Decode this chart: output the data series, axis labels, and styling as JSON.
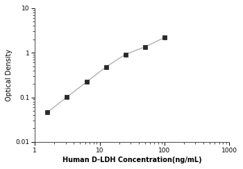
{
  "x_data": [
    1.563,
    3.125,
    6.25,
    12.5,
    25,
    50,
    100
  ],
  "y_data": [
    0.046,
    0.102,
    0.22,
    0.48,
    0.92,
    1.35,
    2.2
  ],
  "xlim": [
    1,
    1000
  ],
  "ylim": [
    0.01,
    10
  ],
  "xlabel": "Human D-LDH Concentration(ng/mL)",
  "ylabel": "Optical Density",
  "line_color": "#b0b0b0",
  "marker_color": "#2a2a2a",
  "marker": "s",
  "marker_size": 4,
  "line_width": 1.0,
  "xlabel_fontsize": 7,
  "ylabel_fontsize": 7,
  "tick_fontsize": 6.5,
  "background_color": "#ffffff",
  "xtick_labels": [
    "1",
    "10",
    "100",
    "1000"
  ],
  "xtick_values": [
    1,
    10,
    100,
    1000
  ],
  "ytick_labels": [
    "0.01",
    "0.1",
    "1",
    "10"
  ],
  "ytick_values": [
    0.01,
    0.1,
    1,
    10
  ]
}
